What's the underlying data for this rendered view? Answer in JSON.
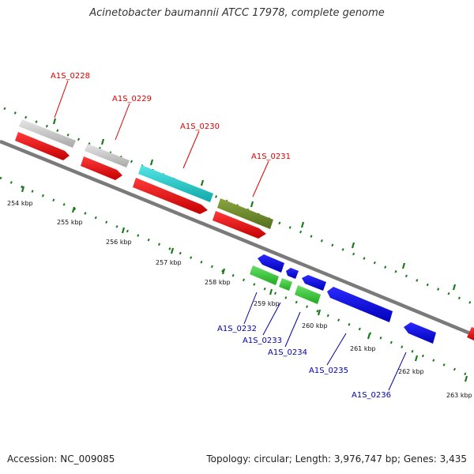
{
  "title": "Acinetobacter baumannii ATCC 17978, complete genome",
  "footer": {
    "accession": "Accession: NC_009085",
    "summary": "Topology: circular; Length: 3,976,747 bp; Genes: 3,435"
  },
  "colors": {
    "forward_label": "#dd0000",
    "reverse_label": "#0000aa",
    "tick": "#1a7a1a",
    "backbone": "#7a7a7a",
    "gray_feature": "#c8c8c8",
    "red_feature": "#ff0000",
    "cyan_feature": "#20cccc",
    "olive_feature": "#6e8c2a",
    "blue_feature": "#0000ee",
    "green_feature": "#33cc33"
  },
  "ticks": [
    "254 kbp",
    "255 kbp",
    "256 kbp",
    "257 kbp",
    "258 kbp",
    "259 kbp",
    "260 kbp",
    "261 kbp",
    "262 kbp",
    "263 kbp"
  ],
  "genes_forward": [
    "A1S_0228",
    "A1S_0229",
    "A1S_0230",
    "A1S_0231"
  ],
  "genes_reverse": [
    "A1S_0232",
    "A1S_0233",
    "A1S_0234",
    "A1S_0235",
    "A1S_0236"
  ]
}
